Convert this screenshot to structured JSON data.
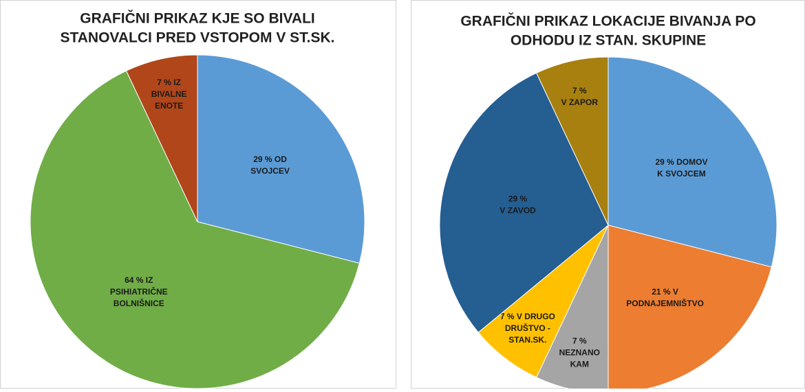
{
  "chart_data": [
    {
      "type": "pie",
      "title": [
        "GRAFIČNI PRIKAZ KJE SO BIVALI",
        "STANOVALCI PRED VSTOPOM V ST.SK."
      ],
      "values": [
        29,
        64,
        7
      ],
      "value_labels": [
        [
          "29 % OD",
          "SVOJCEV"
        ],
        [
          "64 % IZ",
          "PSIHIATRIČNE",
          "BOLNIŠNICE"
        ],
        [
          "7 % IZ",
          "BIVALNE",
          "ENOTE"
        ]
      ],
      "colors": [
        "#5b9bd5",
        "#70ad47",
        "#b0461a"
      ]
    },
    {
      "type": "pie",
      "title": [
        "GRAFIČNI PRIKAZ LOKACIJE BIVANJA PO",
        "ODHODU IZ STAN. SKUPINE"
      ],
      "values": [
        29,
        21,
        7,
        7,
        29,
        7
      ],
      "value_labels": [
        [
          "29 % DOMOV",
          "K SVOJCEM"
        ],
        [
          "21 % V",
          "PODNAJEMNIŠTVO"
        ],
        [
          "7 %",
          "NEZNANO",
          "KAM"
        ],
        [
          "7 % V DRUGO",
          "DRUŠTVO -",
          "STAN.SK."
        ],
        [
          "29 %",
          "V ZAVOD"
        ],
        [
          "7 %",
          "V ZAPOR"
        ]
      ],
      "colors": [
        "#5b9bd5",
        "#ed7d31",
        "#a5a5a5",
        "#ffc000",
        "#255e91",
        "#a8800f"
      ]
    }
  ]
}
